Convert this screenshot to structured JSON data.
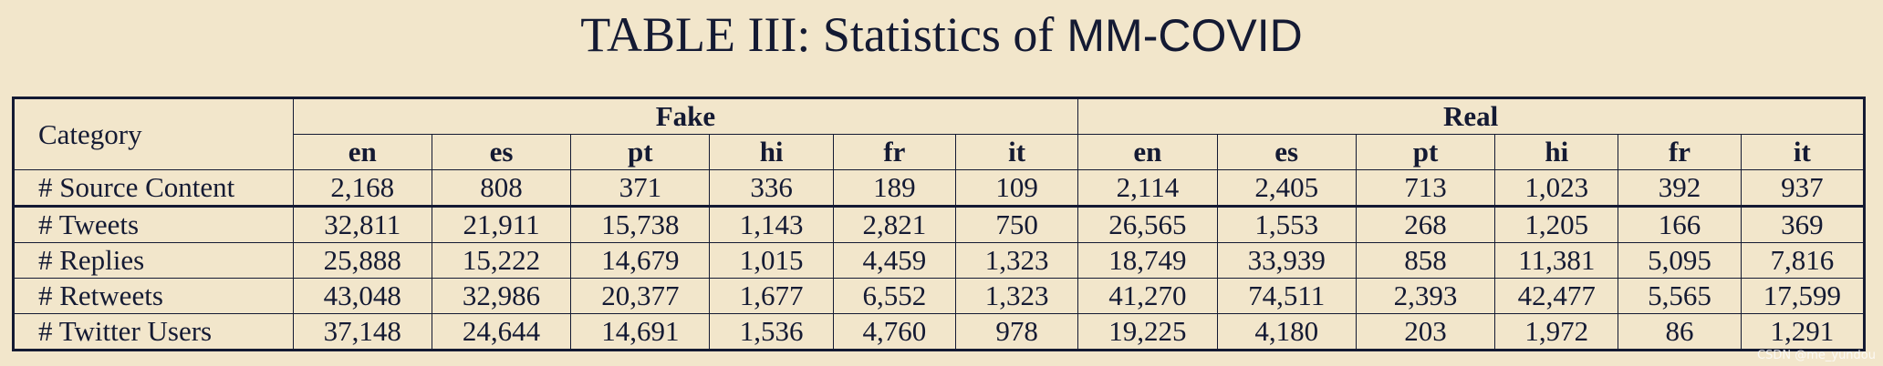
{
  "title": {
    "prefix": "TABLE III: Statistics of",
    "name": "MM-COVID"
  },
  "table": {
    "corner": "Category",
    "groups": [
      {
        "name": "Fake",
        "languages": [
          "en",
          "es",
          "pt",
          "hi",
          "fr",
          "it"
        ]
      },
      {
        "name": "Real",
        "languages": [
          "en",
          "es",
          "pt",
          "hi",
          "fr",
          "it"
        ]
      }
    ],
    "rows": [
      {
        "label": "# Source Content",
        "values": [
          "2,168",
          "808",
          "371",
          "336",
          "189",
          "109",
          "2,114",
          "2,405",
          "713",
          "1,023",
          "392",
          "937"
        ]
      },
      {
        "label": "# Tweets",
        "values": [
          "32,811",
          "21,911",
          "15,738",
          "1,143",
          "2,821",
          "750",
          "26,565",
          "1,553",
          "268",
          "1,205",
          "166",
          "369"
        ]
      },
      {
        "label": "# Replies",
        "values": [
          "25,888",
          "15,222",
          "14,679",
          "1,015",
          "4,459",
          "1,323",
          "18,749",
          "33,939",
          "858",
          "11,381",
          "5,095",
          "7,816"
        ]
      },
      {
        "label": "# Retweets",
        "values": [
          "43,048",
          "32,986",
          "20,377",
          "1,677",
          "6,552",
          "1,323",
          "41,270",
          "74,511",
          "2,393",
          "42,477",
          "5,565",
          "17,599"
        ]
      },
      {
        "label": "# Twitter Users",
        "values": [
          "37,148",
          "24,644",
          "14,691",
          "1,536",
          "4,760",
          "978",
          "19,225",
          "4,180",
          "203",
          "1,972",
          "86",
          "1,291"
        ]
      }
    ]
  },
  "watermark": "CSDN @me_yundou"
}
